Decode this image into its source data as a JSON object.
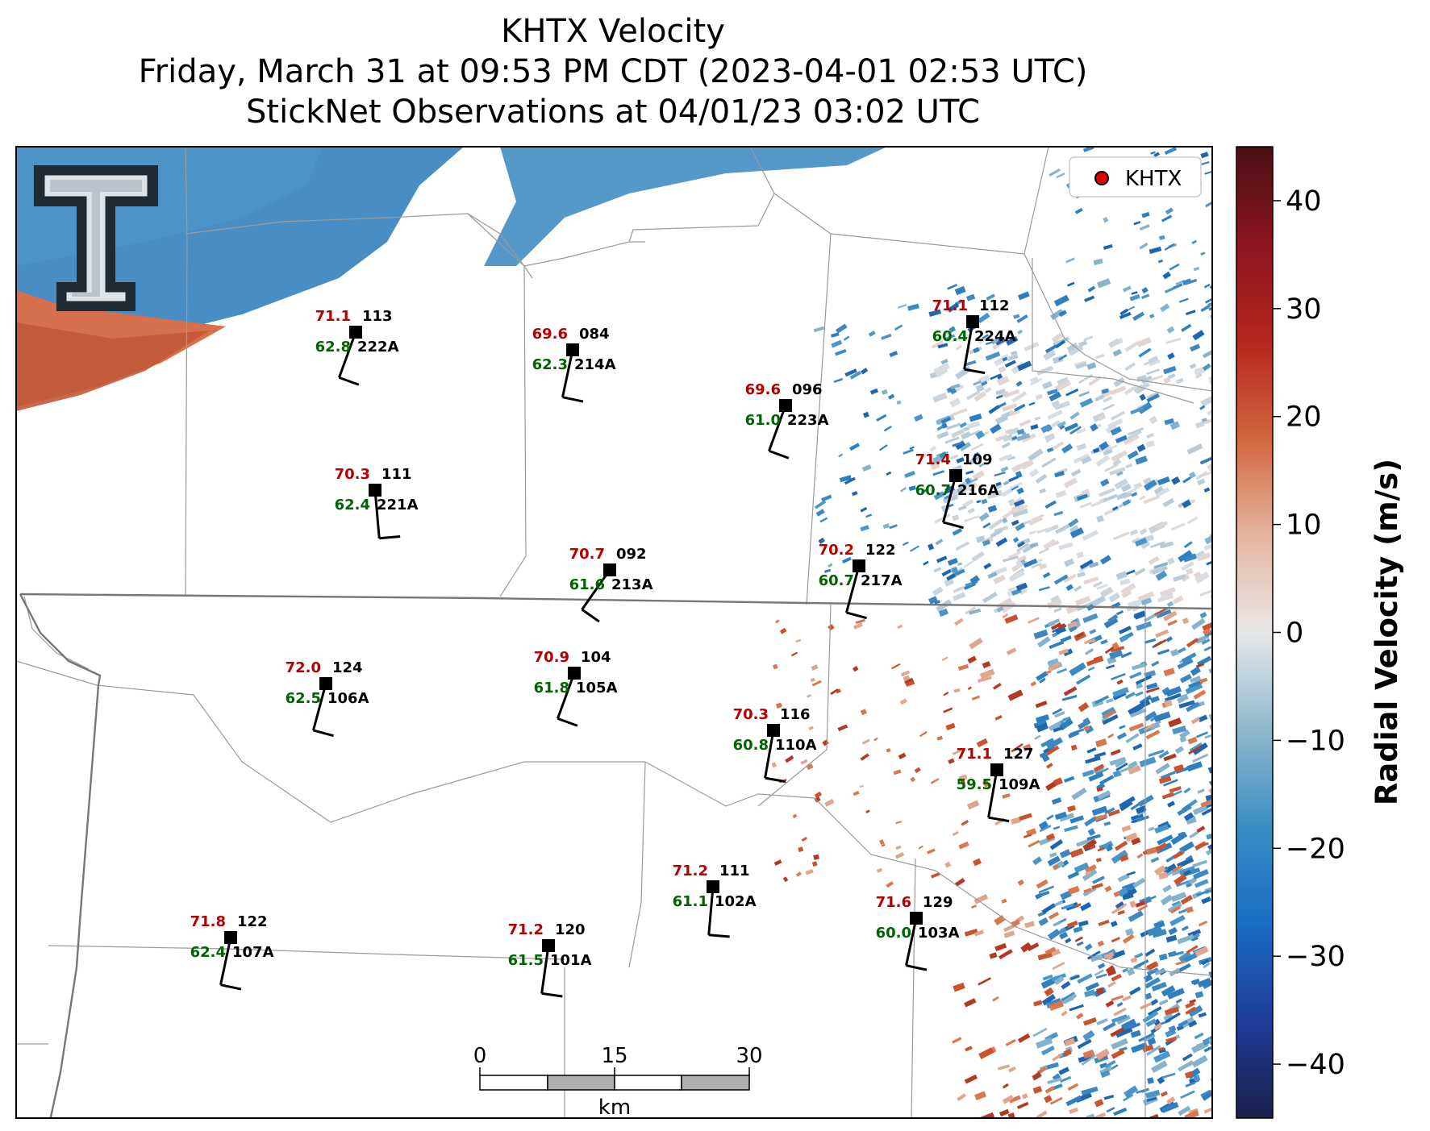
{
  "title": {
    "line1": "KHTX Velocity",
    "line2": "Friday, March 31 at 09:53 PM CDT (2023-04-01 02:53 UTC)",
    "line3": "StickNet Observations at 04/01/23 03:02 UTC"
  },
  "legend": {
    "label": "KHTX",
    "marker_color": "#e00000"
  },
  "colorbar": {
    "label": "Radial Velocity (m/s)",
    "min": -45,
    "max": 45,
    "ticks": [
      "40",
      "30",
      "20",
      "10",
      "0",
      "−10",
      "−20",
      "−30",
      "−40"
    ],
    "tick_values": [
      40,
      30,
      20,
      10,
      0,
      -10,
      -20,
      -30,
      -40
    ],
    "colors": [
      "#1a1f4a",
      "#1f3c9a",
      "#1a6cc4",
      "#3b8ec4",
      "#8fb8cc",
      "#e8e8e8",
      "#e5b5a0",
      "#d2663d",
      "#b3261e",
      "#8c1520",
      "#4a0f14"
    ]
  },
  "scalebar": {
    "labels": [
      "0",
      "15",
      "30"
    ],
    "unit": "km"
  },
  "logo": {
    "name": "Texas Tech Double T"
  },
  "stations": [
    {
      "id": "222A",
      "temp": "71.1",
      "dew": "62.8",
      "pres": "113",
      "wind_from_deg": 200
    },
    {
      "id": "214A",
      "temp": "69.6",
      "dew": "62.3",
      "pres": "084",
      "wind_from_deg": 192
    },
    {
      "id": "223A",
      "temp": "69.6",
      "dew": "61.0",
      "pres": "096",
      "wind_from_deg": 200
    },
    {
      "id": "224A",
      "temp": "71.1",
      "dew": "60.4",
      "pres": "112",
      "wind_from_deg": 190
    },
    {
      "id": "221A",
      "temp": "70.3",
      "dew": "62.4",
      "pres": "111",
      "wind_from_deg": 175
    },
    {
      "id": "216A",
      "temp": "71.4",
      "dew": "60.7",
      "pres": "109",
      "wind_from_deg": 195
    },
    {
      "id": "213A",
      "temp": "70.7",
      "dew": "61.6",
      "pres": "092",
      "wind_from_deg": 215
    },
    {
      "id": "217A",
      "temp": "70.2",
      "dew": "60.7",
      "pres": "122",
      "wind_from_deg": 195
    },
    {
      "id": "106A",
      "temp": "72.0",
      "dew": "62.5",
      "pres": "124",
      "wind_from_deg": 195
    },
    {
      "id": "105A",
      "temp": "70.9",
      "dew": "61.8",
      "pres": "104",
      "wind_from_deg": 200
    },
    {
      "id": "110A",
      "temp": "70.3",
      "dew": "60.8",
      "pres": "116",
      "wind_from_deg": 190
    },
    {
      "id": "109A",
      "temp": "71.1",
      "dew": "59.5",
      "pres": "127",
      "wind_from_deg": 190
    },
    {
      "id": "107A",
      "temp": "71.8",
      "dew": "62.4",
      "pres": "122",
      "wind_from_deg": 192
    },
    {
      "id": "101A",
      "temp": "71.2",
      "dew": "61.5",
      "pres": "120",
      "wind_from_deg": 188
    },
    {
      "id": "102A",
      "temp": "71.2",
      "dew": "61.1",
      "pres": "111",
      "wind_from_deg": 185
    },
    {
      "id": "103A",
      "temp": "71.6",
      "dew": "60.0",
      "pres": "129",
      "wind_from_deg": 192
    }
  ]
}
